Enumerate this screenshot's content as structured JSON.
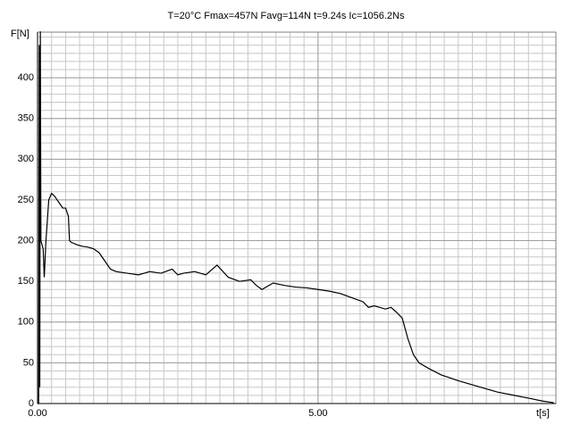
{
  "chart_data": {
    "type": "line",
    "title": "T=20°C   Fmax=457N   Favg=114N   t=9.24s   Ic=1056.2Ns",
    "ylabel": "F[N]",
    "xlabel": "t[s]",
    "x": [
      0,
      0.02,
      0.03,
      0.04,
      0.05,
      0.06,
      0.08,
      0.1,
      0.12,
      0.15,
      0.2,
      0.25,
      0.3,
      0.35,
      0.4,
      0.45,
      0.5,
      0.55,
      0.57,
      0.6,
      0.7,
      0.8,
      0.9,
      1.0,
      1.1,
      1.2,
      1.3,
      1.4,
      1.6,
      1.8,
      2.0,
      2.2,
      2.4,
      2.5,
      2.6,
      2.8,
      3.0,
      3.2,
      3.4,
      3.6,
      3.8,
      3.9,
      4.0,
      4.2,
      4.4,
      4.6,
      4.8,
      5.0,
      5.2,
      5.4,
      5.6,
      5.8,
      5.9,
      6.0,
      6.1,
      6.2,
      6.3,
      6.4,
      6.5,
      6.6,
      6.7,
      6.8,
      7.0,
      7.2,
      7.5,
      7.8,
      8.0,
      8.2,
      8.5,
      8.8,
      9.0,
      9.2
    ],
    "series": [
      {
        "color": "#000000",
        "values": [
          0,
          0,
          440,
          20,
          457,
          200,
          195,
          190,
          155,
          200,
          250,
          258,
          255,
          250,
          245,
          240,
          240,
          230,
          200,
          198,
          195,
          193,
          192,
          190,
          185,
          175,
          165,
          162,
          160,
          158,
          162,
          160,
          165,
          158,
          160,
          162,
          158,
          170,
          155,
          150,
          152,
          145,
          140,
          148,
          145,
          143,
          142,
          140,
          138,
          135,
          130,
          125,
          118,
          120,
          118,
          116,
          118,
          112,
          105,
          80,
          60,
          50,
          42,
          35,
          28,
          22,
          18,
          14,
          10,
          6,
          3,
          1
        ]
      }
    ],
    "xlim": [
      0,
      9.24
    ],
    "ylim": [
      0,
      456
    ],
    "xticks": [
      {
        "value": 0,
        "label": "0.00"
      },
      {
        "value": 5,
        "label": "5.00"
      }
    ],
    "yticks": [
      0,
      50,
      100,
      150,
      200,
      250,
      300,
      350,
      400
    ],
    "minor_grid": {
      "x": 0.25,
      "y": 10
    },
    "grid": true
  }
}
